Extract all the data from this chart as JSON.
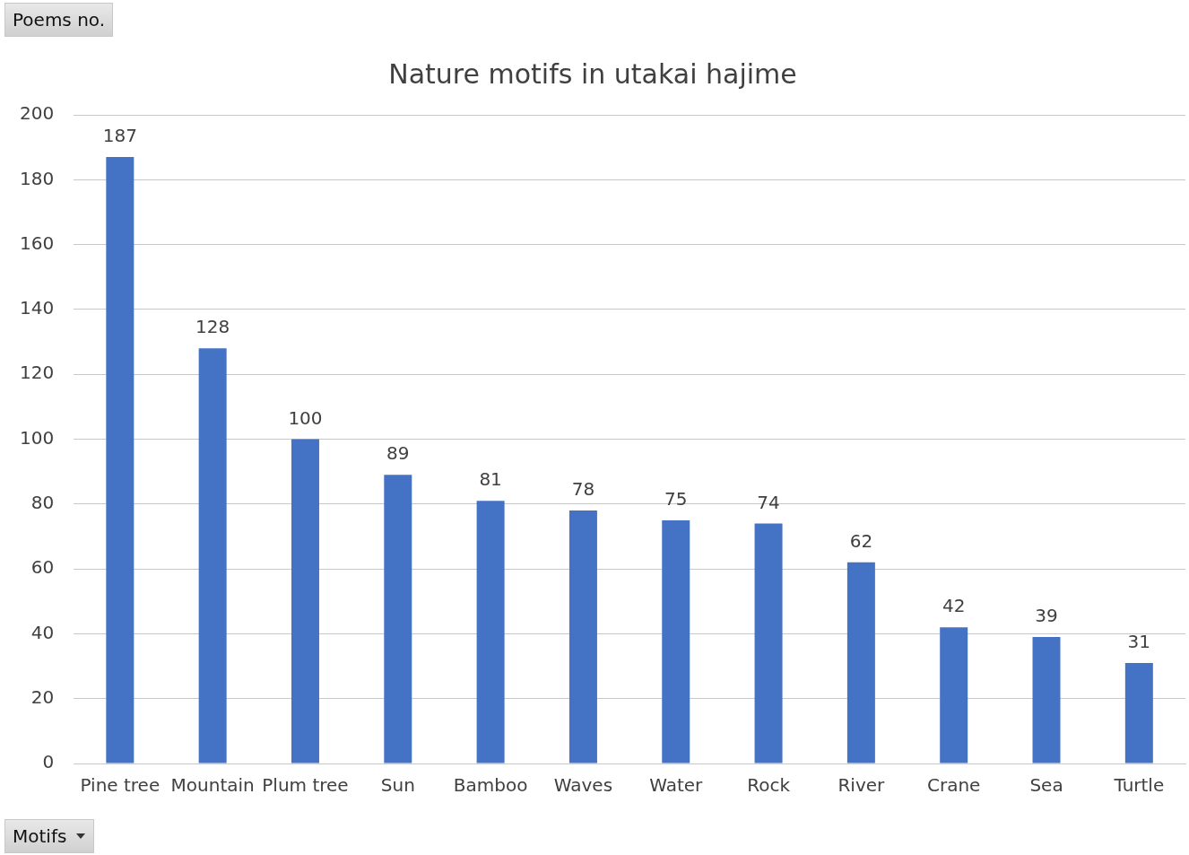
{
  "chart_data": {
    "type": "bar",
    "title": "Nature motifs in utakai hajime",
    "ylabel": "Poems no.",
    "xlabel": "Motifs",
    "categories": [
      "Pine tree",
      "Mountain",
      "Plum tree",
      "Sun",
      "Bamboo",
      "Waves",
      "Water",
      "Rock",
      "River",
      "Crane",
      "Sea",
      "Turtle"
    ],
    "values": [
      187,
      128,
      100,
      89,
      81,
      78,
      75,
      74,
      62,
      42,
      39,
      31
    ],
    "color": "#4472c4",
    "ylim": [
      0,
      200
    ],
    "yticks": [
      0,
      20,
      40,
      60,
      80,
      100,
      120,
      140,
      160,
      180,
      200
    ],
    "grid": "y",
    "data_labels": true,
    "legend": false
  }
}
